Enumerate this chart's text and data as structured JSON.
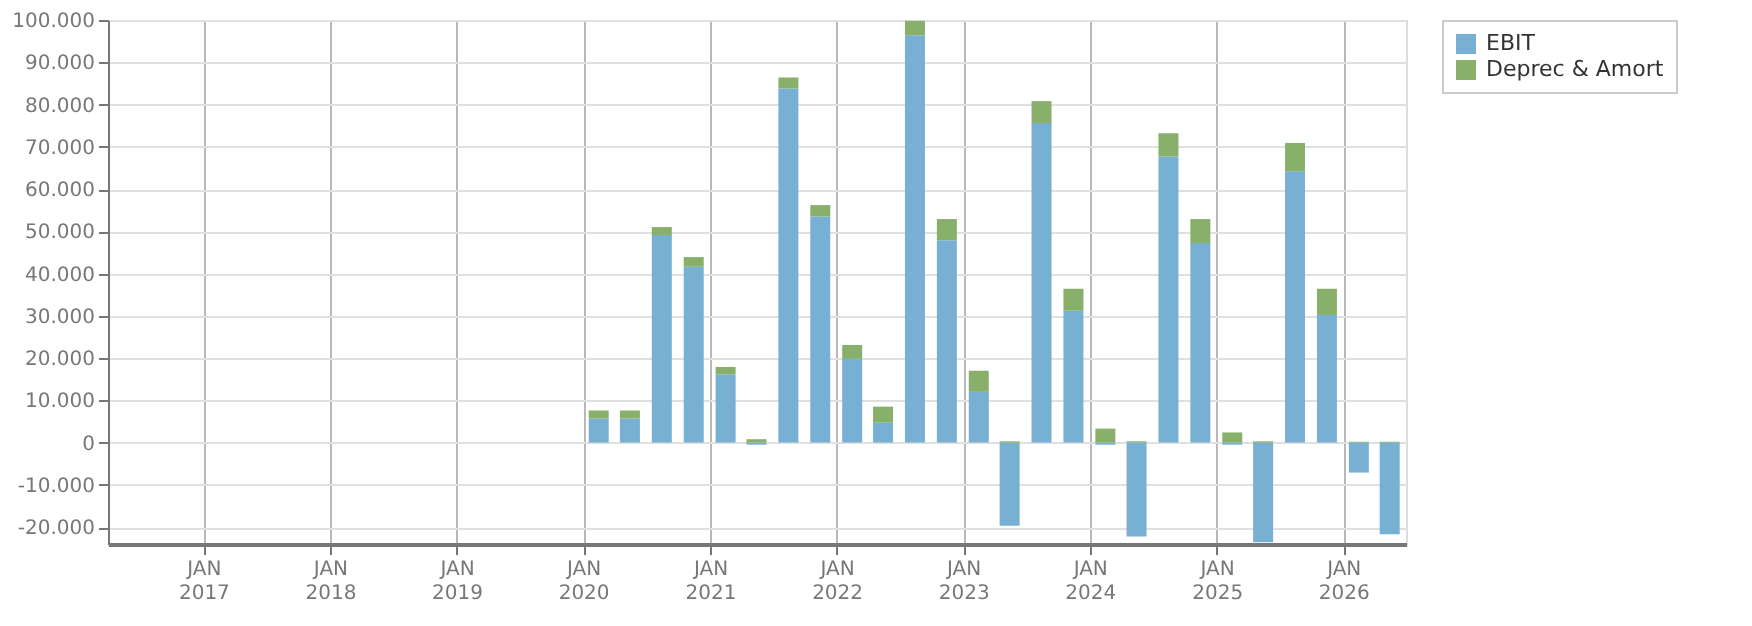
{
  "chart_data": {
    "type": "bar",
    "stacked": true,
    "x": [
      "2020-02-15",
      "2020-05-15",
      "2020-08-15",
      "2020-11-15",
      "2021-02-15",
      "2021-05-15",
      "2021-08-15",
      "2021-11-15",
      "2022-02-15",
      "2022-05-15",
      "2022-08-15",
      "2022-11-15",
      "2023-02-15",
      "2023-05-15",
      "2023-08-15",
      "2023-11-15",
      "2024-02-15",
      "2024-05-15",
      "2024-08-15",
      "2024-11-15",
      "2025-02-15",
      "2025-05-15",
      "2025-08-15",
      "2025-11-15",
      "2026-02-15",
      "2026-05-15"
    ],
    "series": [
      {
        "name": "EBIT",
        "color": "#77b0d3",
        "values": [
          5700,
          5700,
          49100,
          41600,
          16100,
          -500,
          83800,
          53500,
          19800,
          4700,
          96400,
          47900,
          12000,
          -19700,
          75600,
          31200,
          -500,
          -22200,
          67700,
          47200,
          -500,
          -23600,
          64200,
          30200,
          -7100,
          -21700
        ]
      },
      {
        "name": "Deprec & Amort",
        "color": "#88b06a",
        "values": [
          1900,
          1900,
          1900,
          2300,
          1800,
          800,
          2600,
          2700,
          3300,
          3800,
          3400,
          5000,
          5000,
          300,
          5200,
          5200,
          3300,
          300,
          5500,
          5700,
          2400,
          300,
          6700,
          6200,
          200,
          200
        ]
      }
    ],
    "ylim": [
      -24000,
      100000
    ],
    "yticks": [
      {
        "value": -20000,
        "label": "-20.000"
      },
      {
        "value": -10000,
        "label": "-10.000"
      },
      0,
      {
        "value": 10000,
        "label": "10.000"
      },
      {
        "value": 20000,
        "label": "20.000"
      },
      {
        "value": 30000,
        "label": "30.000"
      },
      {
        "value": 40000,
        "label": "40.000"
      },
      {
        "value": 50000,
        "label": "50.000"
      },
      {
        "value": 60000,
        "label": "60.000"
      },
      {
        "value": 70000,
        "label": "70.000"
      },
      {
        "value": 80000,
        "label": "80.000"
      },
      {
        "value": 90000,
        "label": "90.000"
      },
      {
        "value": 100000,
        "label": "100.000"
      }
    ],
    "xlim": [
      "2016-04-01",
      "2026-07-01"
    ],
    "xticks": [
      {
        "value": "2017-01-01",
        "label": "JAN 2017"
      },
      {
        "value": "2018-01-01",
        "label": "JAN 2018"
      },
      {
        "value": "2019-01-01",
        "label": "JAN 2019"
      },
      {
        "value": "2020-01-01",
        "label": "JAN 2020"
      },
      {
        "value": "2021-01-01",
        "label": "JAN 2021"
      },
      {
        "value": "2022-01-01",
        "label": "JAN 2022"
      },
      {
        "value": "2023-01-01",
        "label": "JAN 2023"
      },
      {
        "value": "2024-01-01",
        "label": "JAN 2024"
      },
      {
        "value": "2025-01-01",
        "label": "JAN 2025"
      },
      {
        "value": "2026-01-01",
        "label": "JAN 2026"
      }
    ],
    "grid": true,
    "legend": "top right"
  }
}
